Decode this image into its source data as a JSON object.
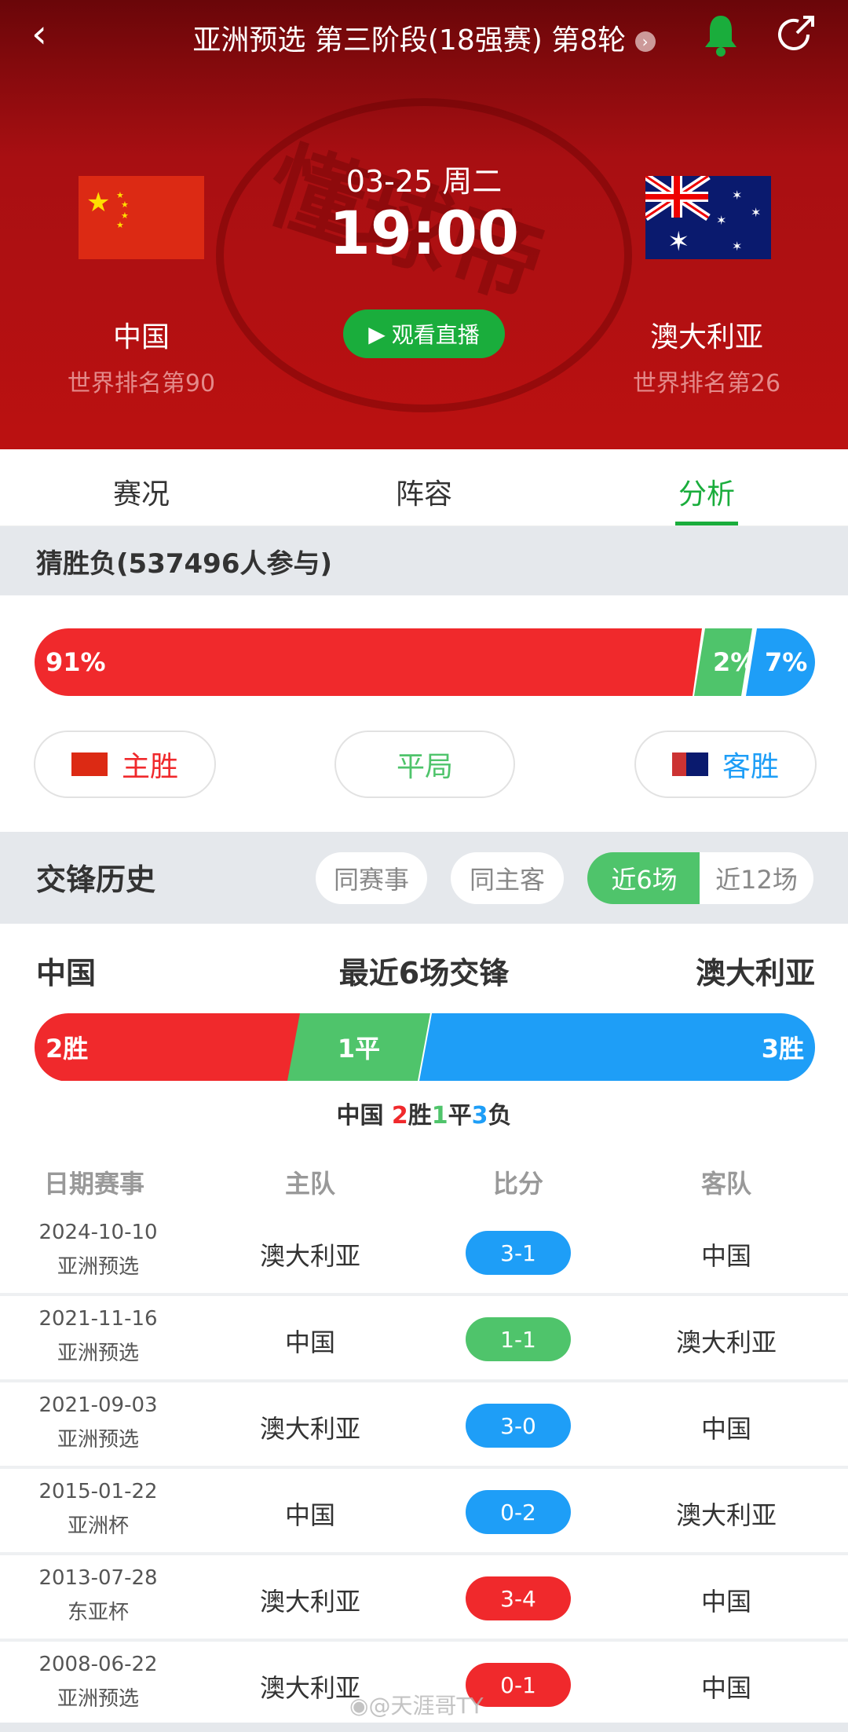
{
  "header": {
    "title": "亚洲预选 第三阶段(18强赛) 第8轮",
    "date": "03-25 周二",
    "time": "19:00",
    "watch_label": "观看直播",
    "home": {
      "name": "中国",
      "rank": "世界排名第90"
    },
    "away": {
      "name": "澳大利亚",
      "rank": "世界排名第26"
    },
    "watermark": "懂球帝"
  },
  "tabs": [
    {
      "label": "赛况"
    },
    {
      "label": "阵容"
    },
    {
      "label": "分析",
      "active": true
    }
  ],
  "guess": {
    "title": "猜胜负(537496人参与)",
    "home_pct": 91,
    "draw_pct": 2,
    "away_pct": 7,
    "home_label": "91%",
    "draw_label": "2%",
    "away_label": "7%",
    "home_btn": "主胜",
    "draw_btn": "平局",
    "away_btn": "客胜"
  },
  "h2h": {
    "title": "交锋历史",
    "filters": [
      "同赛事",
      "同主客",
      "近6场",
      "近12场"
    ],
    "active_filter": "近6场",
    "home": "中国",
    "away": "澳大利亚",
    "subtitle": "最近6场交锋",
    "wins": 2,
    "draws": 1,
    "losses": 3,
    "win_label": "2胜",
    "draw_label": "1平",
    "loss_label": "3胜",
    "summary": {
      "team": "中国",
      "w": "2",
      "w_s": "胜",
      "d": "1",
      "d_s": "平",
      "l": "3",
      "l_s": "负"
    },
    "columns": [
      "日期赛事",
      "主队",
      "比分",
      "客队"
    ],
    "rows": [
      {
        "date": "2024-10-10",
        "comp": "亚洲预选",
        "home": "澳大利亚",
        "score": "3-1",
        "away": "中国",
        "result": "loss"
      },
      {
        "date": "2021-11-16",
        "comp": "亚洲预选",
        "home": "中国",
        "score": "1-1",
        "away": "澳大利亚",
        "result": "draw"
      },
      {
        "date": "2021-09-03",
        "comp": "亚洲预选",
        "home": "澳大利亚",
        "score": "3-0",
        "away": "中国",
        "result": "loss"
      },
      {
        "date": "2015-01-22",
        "comp": "亚洲杯",
        "home": "中国",
        "score": "0-2",
        "away": "澳大利亚",
        "result": "loss"
      },
      {
        "date": "2013-07-28",
        "comp": "东亚杯",
        "home": "澳大利亚",
        "score": "3-4",
        "away": "中国",
        "result": "win"
      },
      {
        "date": "2008-06-22",
        "comp": "亚洲预选",
        "home": "澳大利亚",
        "score": "0-1",
        "away": "中国",
        "result": "win"
      }
    ]
  },
  "watermark_text": "@天涯哥TY",
  "colors": {
    "red": "#f0292c",
    "green": "#4fc46b",
    "blue": "#1e9ef7"
  }
}
